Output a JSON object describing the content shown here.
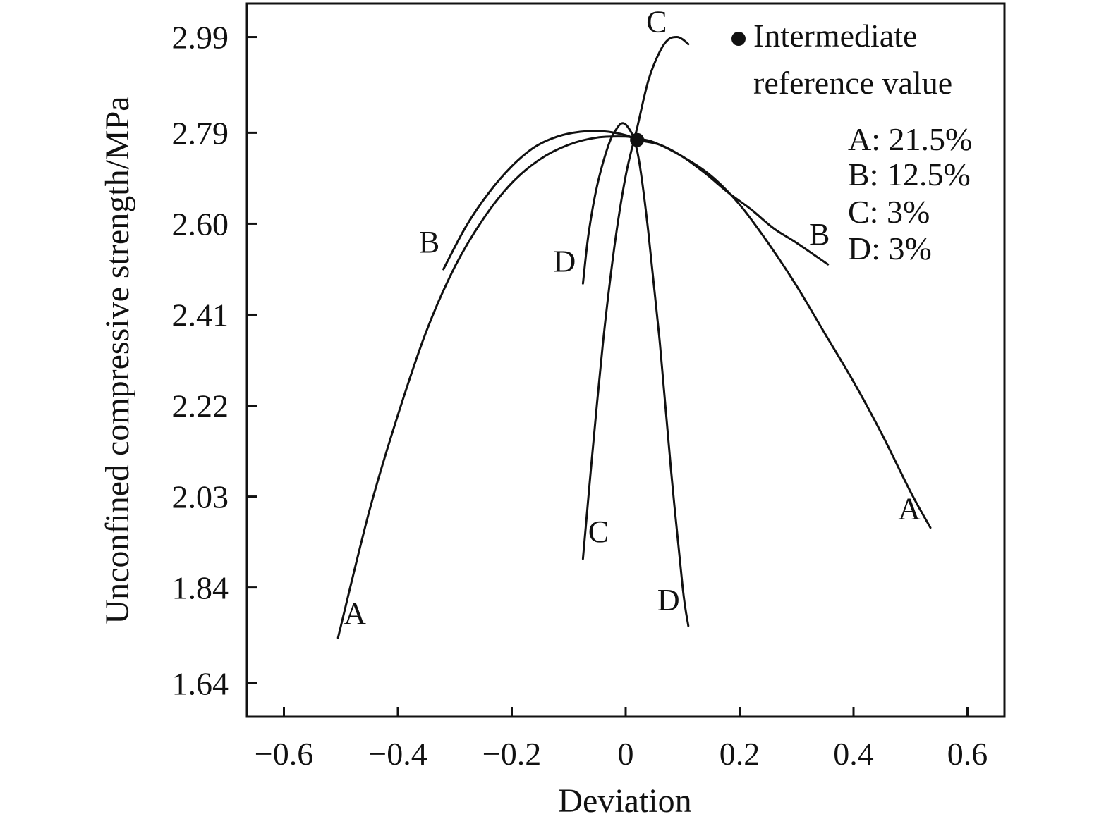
{
  "chart_data": {
    "type": "line",
    "xlabel": "Deviation",
    "ylabel": "Unconfined compressive strength/MPa",
    "xlim": [
      -0.665,
      0.665
    ],
    "ylim": [
      1.57,
      3.06
    ],
    "x_ticks": [
      -0.6,
      -0.4,
      -0.2,
      0,
      0.2,
      0.4,
      0.6
    ],
    "x_tick_labels": [
      "−0.6",
      "−0.4",
      "−0.2",
      "0",
      "0.2",
      "0.4",
      "0.6"
    ],
    "y_ticks": [
      1.64,
      1.84,
      2.03,
      2.22,
      2.41,
      2.6,
      2.79,
      2.99
    ],
    "y_tick_labels": [
      "1.64",
      "1.84",
      "2.03",
      "2.22",
      "2.41",
      "2.60",
      "2.79",
      "2.99"
    ],
    "grid": false,
    "legend_position": "top-right",
    "colors": {
      "line": "#111111",
      "marker": "#111111"
    },
    "reference_point": {
      "label": "Intermediate reference value",
      "label_lines": [
        "Intermediate",
        "reference value"
      ],
      "x": 0.02,
      "y": 2.775
    },
    "legend_entries": [
      "A: 21.5%",
      "B: 12.5%",
      "C: 3%",
      "D: 3%"
    ],
    "series": [
      {
        "name": "A",
        "x": [
          -0.505,
          -0.45,
          -0.4,
          -0.35,
          -0.3,
          -0.25,
          -0.2,
          -0.15,
          -0.1,
          -0.05,
          0.0,
          0.02,
          0.05,
          0.1,
          0.15,
          0.2,
          0.25,
          0.3,
          0.35,
          0.4,
          0.45,
          0.5,
          0.535
        ],
        "y": [
          1.735,
          2.0,
          2.2,
          2.375,
          2.51,
          2.61,
          2.685,
          2.735,
          2.765,
          2.78,
          2.782,
          2.778,
          2.77,
          2.74,
          2.7,
          2.64,
          2.56,
          2.47,
          2.37,
          2.27,
          2.16,
          2.04,
          1.965
        ],
        "end_labels": [
          "A",
          "A"
        ]
      },
      {
        "name": "B",
        "x": [
          -0.32,
          -0.28,
          -0.24,
          -0.2,
          -0.16,
          -0.12,
          -0.08,
          -0.04,
          0.0,
          0.02,
          0.06,
          0.1,
          0.14,
          0.18,
          0.22,
          0.26,
          0.3,
          0.355
        ],
        "y": [
          2.505,
          2.595,
          2.665,
          2.72,
          2.76,
          2.782,
          2.792,
          2.793,
          2.785,
          2.775,
          2.765,
          2.74,
          2.705,
          2.665,
          2.63,
          2.59,
          2.56,
          2.515
        ],
        "end_labels": [
          "B",
          "B"
        ]
      },
      {
        "name": "C",
        "x": [
          -0.075,
          -0.06,
          -0.04,
          -0.02,
          0.0,
          0.02,
          0.04,
          0.06,
          0.075,
          0.09,
          0.1,
          0.11
        ],
        "y": [
          1.9,
          2.1,
          2.35,
          2.55,
          2.7,
          2.8,
          2.9,
          2.96,
          2.985,
          2.99,
          2.985,
          2.975
        ],
        "end_labels": [
          "C",
          "C"
        ]
      },
      {
        "name": "D",
        "x": [
          -0.075,
          -0.065,
          -0.05,
          -0.03,
          -0.015,
          -0.005,
          0.005,
          0.015,
          0.025,
          0.04,
          0.06,
          0.08,
          0.1,
          0.11
        ],
        "y": [
          2.475,
          2.58,
          2.68,
          2.765,
          2.8,
          2.81,
          2.8,
          2.775,
          2.72,
          2.58,
          2.35,
          2.08,
          1.84,
          1.76
        ],
        "end_labels": [
          "D",
          "D"
        ]
      }
    ]
  }
}
